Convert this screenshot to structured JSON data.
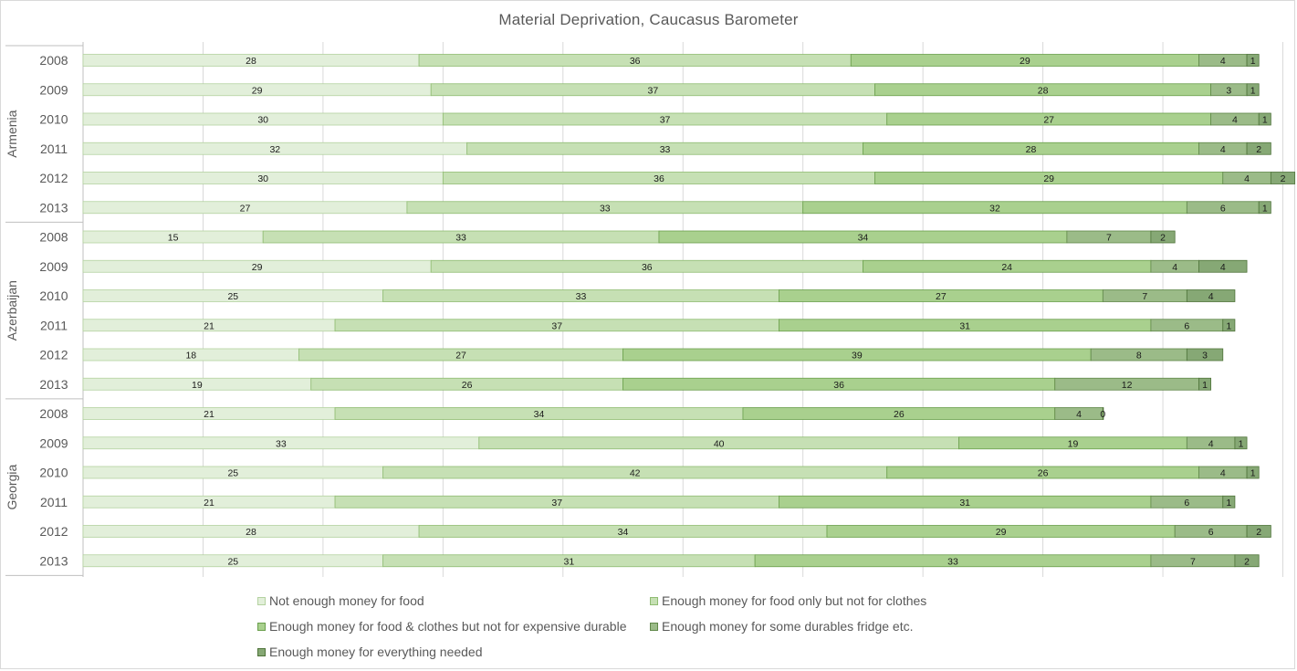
{
  "chart_data": {
    "type": "bar",
    "orientation": "horizontal",
    "stacked": true,
    "title": "Material Deprivation, Caucasus Barometer",
    "groups": [
      {
        "name": "Armenia",
        "years": [
          "2008",
          "2009",
          "2010",
          "2011",
          "2012",
          "2013"
        ]
      },
      {
        "name": "Azerbaijan",
        "years": [
          "2008",
          "2009",
          "2010",
          "2011",
          "2012",
          "2013"
        ]
      },
      {
        "name": "Georgia",
        "years": [
          "2008",
          "2009",
          "2010",
          "2011",
          "2012",
          "2013"
        ]
      }
    ],
    "series": [
      {
        "name": "Not enough money for food",
        "color": "#e2efda",
        "border": "#b4d2a0",
        "values": [
          28,
          29,
          30,
          32,
          30,
          27,
          15,
          29,
          25,
          21,
          18,
          19,
          21,
          33,
          25,
          21,
          28,
          25
        ]
      },
      {
        "name": "Enough money for food only but not for clothes",
        "color": "#c6e0b4",
        "border": "#8fbc72",
        "values": [
          36,
          37,
          37,
          33,
          36,
          33,
          33,
          36,
          33,
          37,
          27,
          26,
          34,
          40,
          42,
          37,
          34,
          31
        ]
      },
      {
        "name": "Enough money for food & clothes but not for expensive durable",
        "color": "#a9d08e",
        "border": "#6a9f4c",
        "values": [
          29,
          28,
          27,
          28,
          29,
          32,
          34,
          24,
          27,
          31,
          39,
          36,
          26,
          19,
          26,
          31,
          29,
          33
        ]
      },
      {
        "name": "Enough money for  some durables fridge etc.",
        "color": "#9bbb88",
        "border": "#5f8748",
        "values": [
          4,
          3,
          4,
          4,
          4,
          6,
          7,
          4,
          7,
          6,
          8,
          12,
          4,
          4,
          4,
          6,
          6,
          7
        ]
      },
      {
        "name": "Enough money for everything needed",
        "color": "#86a875",
        "border": "#4e7339",
        "values": [
          1,
          1,
          1,
          2,
          2,
          1,
          2,
          4,
          4,
          1,
          3,
          1,
          0,
          1,
          1,
          1,
          2,
          2
        ]
      }
    ],
    "x_range": [
      0,
      100
    ],
    "grid": true,
    "legend_position": "bottom"
  }
}
